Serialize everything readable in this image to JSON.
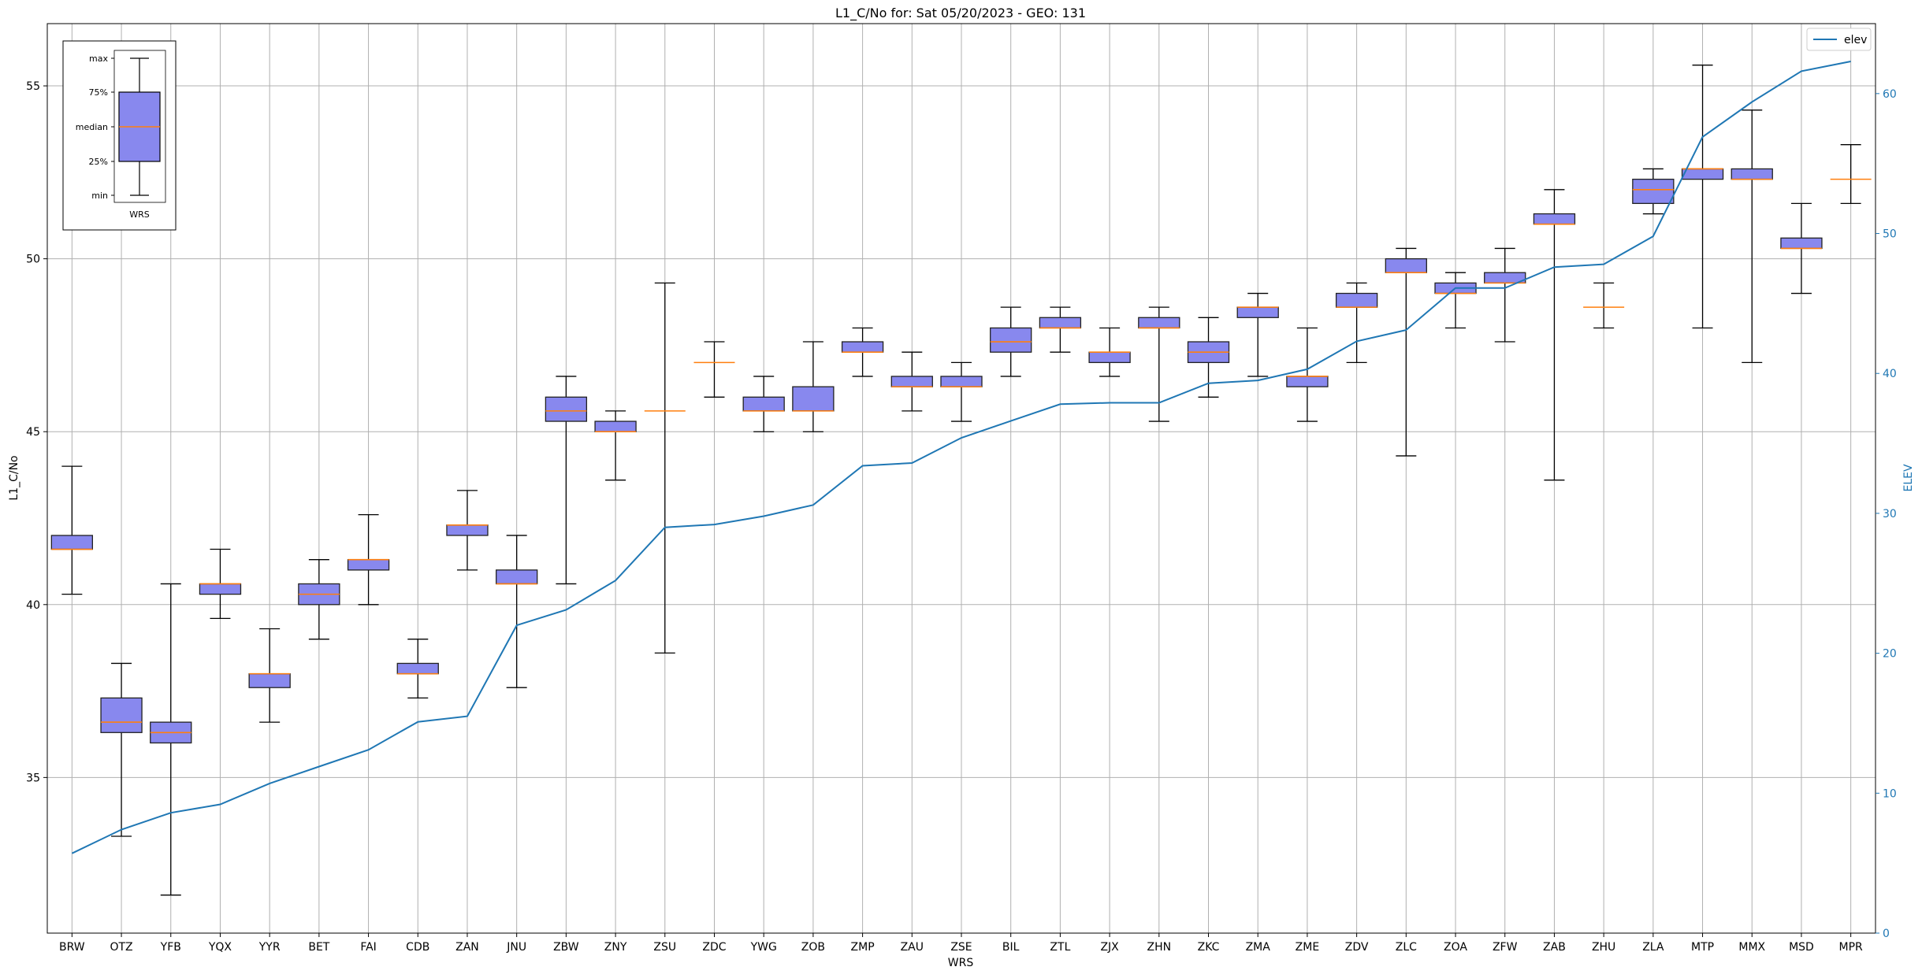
{
  "chart_data": {
    "type": "box",
    "title": "L1_C/No for: Sat 05/20/2023 - GEO: 131",
    "xlabel": "WRS",
    "ylabel": "L1_C/No",
    "y2label": "ELEV",
    "ylim": [
      30.5,
      56.8
    ],
    "y2lim": [
      0,
      65
    ],
    "yticks": [
      35,
      40,
      45,
      50,
      55
    ],
    "y2ticks": [
      0,
      10,
      20,
      30,
      40,
      50,
      60
    ],
    "grid": true,
    "legend": {
      "position": "top-right",
      "entries": [
        "elev"
      ]
    },
    "colors": {
      "box_fill": "#8888ee",
      "box_edge": "#222222",
      "median": "#ff7f0e",
      "elev_line": "#1f77b4",
      "right_axis": "#1f77b4"
    },
    "categories": [
      "BRW",
      "OTZ",
      "YFB",
      "YQX",
      "YYR",
      "BET",
      "FAI",
      "CDB",
      "ZAN",
      "JNU",
      "ZBW",
      "ZNY",
      "ZSU",
      "ZDC",
      "YWG",
      "ZOB",
      "ZMP",
      "ZAU",
      "ZSE",
      "BIL",
      "ZTL",
      "ZJX",
      "ZHN",
      "ZKC",
      "ZMA",
      "ZME",
      "ZDV",
      "ZLC",
      "ZOA",
      "ZFW",
      "ZAB",
      "ZHU",
      "ZLA",
      "MTP",
      "MMX",
      "MSD",
      "MPR"
    ],
    "boxes": [
      {
        "min": 40.3,
        "q1": 41.6,
        "median": 41.6,
        "q3": 42.0,
        "max": 44.0
      },
      {
        "min": 33.3,
        "q1": 36.3,
        "median": 36.6,
        "q3": 37.3,
        "max": 38.3
      },
      {
        "min": 31.6,
        "q1": 36.0,
        "median": 36.3,
        "q3": 36.6,
        "max": 40.6
      },
      {
        "min": 39.6,
        "q1": 40.3,
        "median": 40.6,
        "q3": 40.6,
        "max": 41.6
      },
      {
        "min": 36.6,
        "q1": 37.6,
        "median": 38.0,
        "q3": 38.0,
        "max": 39.3
      },
      {
        "min": 39.0,
        "q1": 40.0,
        "median": 40.3,
        "q3": 40.6,
        "max": 41.3
      },
      {
        "min": 40.0,
        "q1": 41.0,
        "median": 41.3,
        "q3": 41.3,
        "max": 42.6
      },
      {
        "min": 37.3,
        "q1": 38.0,
        "median": 38.0,
        "q3": 38.3,
        "max": 39.0
      },
      {
        "min": 41.0,
        "q1": 42.0,
        "median": 42.3,
        "q3": 42.3,
        "max": 43.3
      },
      {
        "min": 37.6,
        "q1": 40.6,
        "median": 40.6,
        "q3": 41.0,
        "max": 42.0
      },
      {
        "min": 40.6,
        "q1": 45.3,
        "median": 45.6,
        "q3": 46.0,
        "max": 46.6
      },
      {
        "min": 43.6,
        "q1": 45.0,
        "median": 45.0,
        "q3": 45.3,
        "max": 45.6
      },
      {
        "min": 38.6,
        "q1": 45.6,
        "median": 45.6,
        "q3": 45.6,
        "max": 49.3
      },
      {
        "min": 46.0,
        "q1": 47.0,
        "median": 47.0,
        "q3": 47.0,
        "max": 47.6
      },
      {
        "min": 45.0,
        "q1": 45.6,
        "median": 45.6,
        "q3": 46.0,
        "max": 46.6
      },
      {
        "min": 45.0,
        "q1": 45.6,
        "median": 45.6,
        "q3": 46.3,
        "max": 47.6
      },
      {
        "min": 46.6,
        "q1": 47.3,
        "median": 47.3,
        "q3": 47.6,
        "max": 48.0
      },
      {
        "min": 45.6,
        "q1": 46.3,
        "median": 46.3,
        "q3": 46.6,
        "max": 47.3
      },
      {
        "min": 45.3,
        "q1": 46.3,
        "median": 46.3,
        "q3": 46.6,
        "max": 47.0
      },
      {
        "min": 46.6,
        "q1": 47.3,
        "median": 47.6,
        "q3": 48.0,
        "max": 48.6
      },
      {
        "min": 47.3,
        "q1": 48.0,
        "median": 48.0,
        "q3": 48.3,
        "max": 48.6
      },
      {
        "min": 46.6,
        "q1": 47.0,
        "median": 47.3,
        "q3": 47.3,
        "max": 48.0
      },
      {
        "min": 45.3,
        "q1": 48.0,
        "median": 48.0,
        "q3": 48.3,
        "max": 48.6
      },
      {
        "min": 46.0,
        "q1": 47.0,
        "median": 47.3,
        "q3": 47.6,
        "max": 48.3
      },
      {
        "min": 46.6,
        "q1": 48.3,
        "median": 48.6,
        "q3": 48.6,
        "max": 49.0
      },
      {
        "min": 45.3,
        "q1": 46.3,
        "median": 46.6,
        "q3": 46.6,
        "max": 48.0
      },
      {
        "min": 47.0,
        "q1": 48.6,
        "median": 48.6,
        "q3": 49.0,
        "max": 49.3
      },
      {
        "min": 44.3,
        "q1": 49.6,
        "median": 49.6,
        "q3": 50.0,
        "max": 50.3
      },
      {
        "min": 48.0,
        "q1": 49.0,
        "median": 49.0,
        "q3": 49.3,
        "max": 49.6
      },
      {
        "min": 47.6,
        "q1": 49.3,
        "median": 49.3,
        "q3": 49.6,
        "max": 50.3
      },
      {
        "min": 43.6,
        "q1": 51.0,
        "median": 51.0,
        "q3": 51.3,
        "max": 52.0
      },
      {
        "min": 48.0,
        "q1": 48.6,
        "median": 48.6,
        "q3": 48.6,
        "max": 49.3
      },
      {
        "min": 51.3,
        "q1": 51.6,
        "median": 52.0,
        "q3": 52.3,
        "max": 52.6
      },
      {
        "min": 48.0,
        "q1": 52.3,
        "median": 52.6,
        "q3": 52.6,
        "max": 55.6
      },
      {
        "min": 47.0,
        "q1": 52.3,
        "median": 52.3,
        "q3": 52.6,
        "max": 54.3
      },
      {
        "min": 49.0,
        "q1": 50.3,
        "median": 50.3,
        "q3": 50.6,
        "max": 51.6
      },
      {
        "min": 51.6,
        "q1": 52.3,
        "median": 52.3,
        "q3": 52.3,
        "max": 53.3
      }
    ],
    "elev": [
      5.7,
      7.4,
      8.6,
      9.2,
      10.7,
      11.9,
      13.1,
      15.1,
      15.5,
      22.0,
      23.1,
      25.2,
      29.0,
      29.2,
      29.8,
      30.6,
      33.4,
      33.6,
      35.4,
      36.6,
      37.8,
      37.9,
      37.9,
      39.3,
      39.5,
      40.3,
      42.3,
      43.1,
      46.1,
      46.1,
      47.6,
      47.8,
      49.8,
      56.9,
      59.4,
      61.6,
      62.3
    ],
    "inset_key": {
      "labels": [
        "max",
        "75%",
        "median",
        "25%",
        "min"
      ],
      "category": "WRS"
    }
  }
}
